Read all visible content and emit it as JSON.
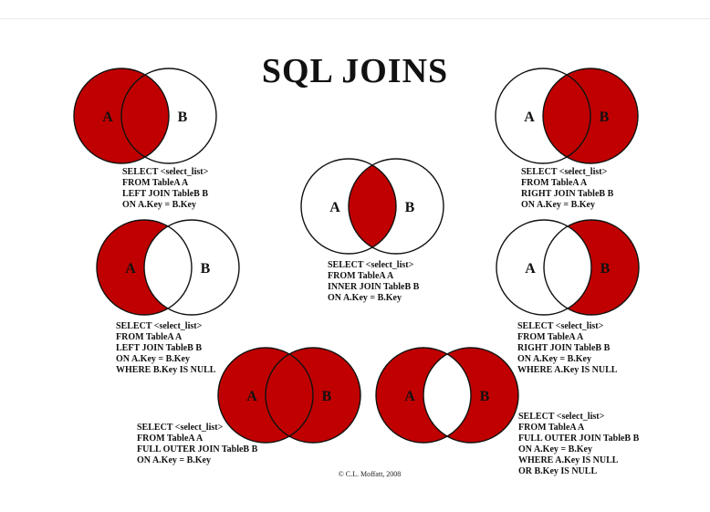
{
  "title": "SQL JOINS",
  "copyright": "© C.L. Moffatt, 2008",
  "fill_color": "#c00000",
  "labels": {
    "a": "A",
    "b": "B"
  },
  "joins": [
    {
      "name": "left-join",
      "fill": "left-full",
      "sql": [
        "SELECT <select_list>",
        "FROM TableA A",
        "LEFT JOIN TableB B",
        "ON A.Key = B.Key"
      ]
    },
    {
      "name": "right-join",
      "fill": "right-full",
      "sql": [
        "SELECT <select_list>",
        "FROM TableA A",
        "RIGHT JOIN TableB B",
        "ON A.Key = B.Key"
      ]
    },
    {
      "name": "inner-join",
      "fill": "intersection",
      "sql": [
        "SELECT <select_list>",
        "FROM TableA A",
        "INNER JOIN TableB B",
        "ON A.Key = B.Key"
      ]
    },
    {
      "name": "left-excluding-join",
      "fill": "left-only",
      "sql": [
        "SELECT <select_list>",
        "FROM TableA A",
        "LEFT JOIN TableB B",
        "ON A.Key = B.Key",
        "WHERE B.Key IS NULL"
      ]
    },
    {
      "name": "right-excluding-join",
      "fill": "right-only",
      "sql": [
        "SELECT <select_list>",
        "FROM TableA A",
        "RIGHT JOIN TableB B",
        "ON A.Key = B.Key",
        "WHERE A.Key IS NULL"
      ]
    },
    {
      "name": "full-outer-join",
      "fill": "union",
      "sql": [
        "SELECT <select_list>",
        "FROM TableA A",
        "FULL OUTER JOIN TableB B",
        "ON A.Key = B.Key"
      ]
    },
    {
      "name": "full-outer-excluding-join",
      "fill": "exclusive",
      "sql": [
        "SELECT <select_list>",
        "FROM TableA A",
        "FULL OUTER JOIN TableB B",
        "ON A.Key = B.Key",
        "WHERE A.Key IS NULL",
        "OR B.Key IS NULL"
      ]
    }
  ]
}
